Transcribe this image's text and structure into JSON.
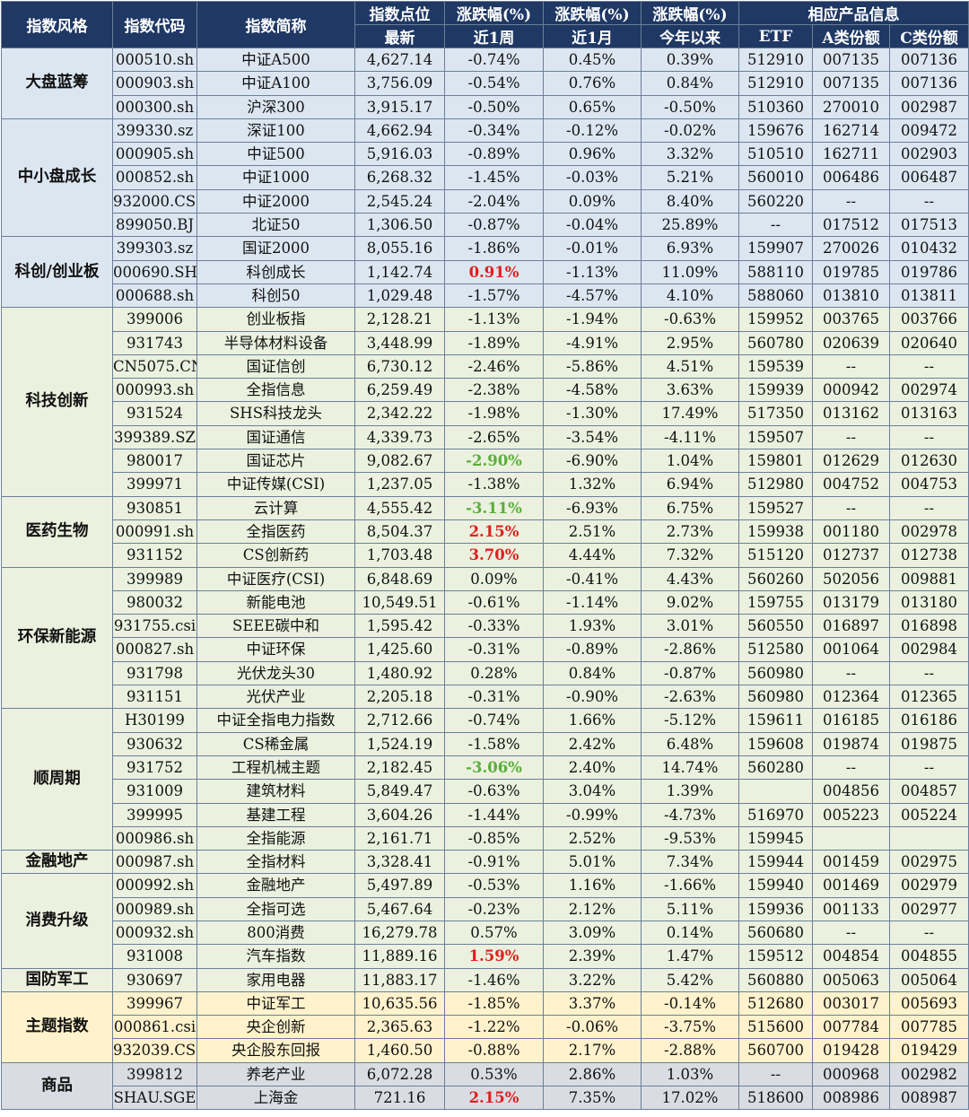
{
  "headers": {
    "style": "指数风格",
    "code": "指数代码",
    "name": "指数简称",
    "points_top": "指数点位",
    "points_sub": "最新",
    "chg_w_top": "涨跌幅(%)",
    "chg_w_sub": "近1周",
    "chg_m_top": "涨跌幅(%)",
    "chg_m_sub": "近1月",
    "chg_y_top": "涨跌幅(%)",
    "chg_y_sub": "今年以来",
    "product_top": "相应产品信息",
    "etf": "ETF",
    "a_share": "A类份额",
    "c_share": "C类份额"
  },
  "highlight_colors": {
    "up": "#e01e1e",
    "down": "#5aae3c"
  },
  "groups": [
    {
      "category": "大盘蓝筹",
      "color": "blue",
      "rows": [
        {
          "code": "000510.sh",
          "name": "中证A500",
          "points": "4,627.14",
          "week": "-0.74%",
          "month": "0.45%",
          "ytd": "0.39%",
          "etf": "512910",
          "a": "007135",
          "c": "007136"
        },
        {
          "code": "000903.sh",
          "name": "中证A100",
          "points": "3,756.09",
          "week": "-0.54%",
          "month": "0.76%",
          "ytd": "0.84%",
          "etf": "512910",
          "a": "007135",
          "c": "007136"
        },
        {
          "code": "000300.sh",
          "name": "沪深300",
          "points": "3,915.17",
          "week": "-0.50%",
          "month": "0.65%",
          "ytd": "-0.50%",
          "etf": "510360",
          "a": "270010",
          "c": "002987"
        }
      ]
    },
    {
      "category": "中小盘成长",
      "color": "blue",
      "rows": [
        {
          "code": "399330.sz",
          "name": "深证100",
          "points": "4,662.94",
          "week": "-0.34%",
          "month": "-0.12%",
          "ytd": "-0.02%",
          "etf": "159676",
          "a": "162714",
          "c": "009472"
        },
        {
          "code": "000905.sh",
          "name": "中证500",
          "points": "5,916.03",
          "week": "-0.89%",
          "month": "0.96%",
          "ytd": "3.32%",
          "etf": "510510",
          "a": "162711",
          "c": "002903"
        },
        {
          "code": "000852.sh",
          "name": "中证1000",
          "points": "6,268.32",
          "week": "-1.45%",
          "month": "-0.03%",
          "ytd": "5.21%",
          "etf": "560010",
          "a": "006486",
          "c": "006487"
        },
        {
          "code": "932000.CSI",
          "name": "中证2000",
          "points": "2,545.24",
          "week": "-2.04%",
          "month": "0.09%",
          "ytd": "8.40%",
          "etf": "560220",
          "a": "--",
          "c": "--"
        },
        {
          "code": "899050.BJ",
          "name": "北证50",
          "points": "1,306.50",
          "week": "-0.87%",
          "month": "-0.04%",
          "ytd": "25.89%",
          "etf": "--",
          "a": "017512",
          "c": "017513"
        }
      ]
    },
    {
      "category": "科创/创业板",
      "color": "blue",
      "rows": [
        {
          "code": "399303.sz",
          "name": "国证2000",
          "points": "8,055.16",
          "week": "-1.86%",
          "month": "-0.01%",
          "ytd": "6.93%",
          "etf": "159907",
          "a": "270026",
          "c": "010432"
        },
        {
          "code": "000690.SH",
          "name": "科创成长",
          "points": "1,142.74",
          "week": "0.91%",
          "week_hl": "up",
          "month": "-1.13%",
          "ytd": "11.09%",
          "etf": "588110",
          "a": "019785",
          "c": "019786"
        },
        {
          "code": "000688.sh",
          "name": "科创50",
          "points": "1,029.48",
          "week": "-1.57%",
          "month": "-4.57%",
          "ytd": "4.10%",
          "etf": "588060",
          "a": "013810",
          "c": "013811"
        }
      ]
    },
    {
      "category": "科技创新",
      "color": "green",
      "rows": [
        {
          "code": "399006",
          "name": "创业板指",
          "points": "2,128.21",
          "week": "-1.13%",
          "month": "-1.94%",
          "ytd": "-0.63%",
          "etf": "159952",
          "a": "003765",
          "c": "003766"
        },
        {
          "code": "931743",
          "name": "半导体材料设备",
          "points": "3,448.99",
          "week": "-1.89%",
          "month": "-4.91%",
          "ytd": "2.95%",
          "etf": "560780",
          "a": "020639",
          "c": "020640"
        },
        {
          "code": "CN5075.CN",
          "name": "国证信创",
          "points": "6,730.12",
          "week": "-2.46%",
          "month": "-5.86%",
          "ytd": "4.51%",
          "etf": "159539",
          "a": "--",
          "c": "--"
        },
        {
          "code": "000993.sh",
          "name": "全指信息",
          "points": "6,259.49",
          "week": "-2.38%",
          "month": "-4.58%",
          "ytd": "3.63%",
          "etf": "159939",
          "a": "000942",
          "c": "002974"
        },
        {
          "code": "931524",
          "name": "SHS科技龙头",
          "points": "2,342.22",
          "week": "-1.98%",
          "month": "-1.30%",
          "ytd": "17.49%",
          "etf": "517350",
          "a": "013162",
          "c": "013163"
        },
        {
          "code": "399389.SZ",
          "name": "国证通信",
          "points": "4,339.73",
          "week": "-2.65%",
          "month": "-3.54%",
          "ytd": "-4.11%",
          "etf": "159507",
          "a": "--",
          "c": "--"
        },
        {
          "code": "980017",
          "name": "国证芯片",
          "points": "9,082.67",
          "week": "-2.90%",
          "week_hl": "down",
          "month": "-6.90%",
          "ytd": "1.04%",
          "etf": "159801",
          "a": "012629",
          "c": "012630"
        },
        {
          "code": "399971",
          "name": "中证传媒(CSI)",
          "points": "1,237.05",
          "week": "-1.38%",
          "month": "1.32%",
          "ytd": "6.94%",
          "etf": "512980",
          "a": "004752",
          "c": "004753"
        }
      ]
    },
    {
      "category": "医药生物",
      "color": "green",
      "rows": [
        {
          "code": "930851",
          "name": "云计算",
          "points": "4,555.42",
          "week": "-3.11%",
          "week_hl": "down",
          "month": "-6.93%",
          "ytd": "6.75%",
          "etf": "159527",
          "a": "--",
          "c": "--"
        },
        {
          "code": "000991.sh",
          "name": "全指医药",
          "points": "8,504.37",
          "week": "2.15%",
          "week_hl": "up",
          "month": "2.51%",
          "ytd": "2.73%",
          "etf": "159938",
          "a": "001180",
          "c": "002978"
        },
        {
          "code": "931152",
          "name": "CS创新药",
          "points": "1,703.48",
          "week": "3.70%",
          "week_hl": "up",
          "month": "4.44%",
          "ytd": "7.32%",
          "etf": "515120",
          "a": "012737",
          "c": "012738"
        }
      ]
    },
    {
      "category": "环保新能源",
      "color": "green",
      "rows": [
        {
          "code": "399989",
          "name": "中证医疗(CSI)",
          "points": "6,848.69",
          "week": "0.09%",
          "month": "-0.41%",
          "ytd": "4.43%",
          "etf": "560260",
          "a": "502056",
          "c": "009881"
        },
        {
          "code": "980032",
          "name": "新能电池",
          "points": "10,549.51",
          "week": "-0.61%",
          "month": "-1.14%",
          "ytd": "9.02%",
          "etf": "159755",
          "a": "013179",
          "c": "013180"
        },
        {
          "code": "931755.csi",
          "name": "SEEE碳中和",
          "points": "1,595.42",
          "week": "-0.33%",
          "month": "1.93%",
          "ytd": "3.01%",
          "etf": "560550",
          "a": "016897",
          "c": "016898"
        },
        {
          "code": "000827.sh",
          "name": "中证环保",
          "points": "1,425.60",
          "week": "-0.31%",
          "month": "-0.89%",
          "ytd": "-2.86%",
          "etf": "512580",
          "a": "001064",
          "c": "002984"
        },
        {
          "code": "931798",
          "name": "光伏龙头30",
          "points": "1,480.92",
          "week": "0.28%",
          "month": "0.84%",
          "ytd": "-0.87%",
          "etf": "560980",
          "a": "--",
          "c": "--"
        },
        {
          "code": "931151",
          "name": "光伏产业",
          "points": "2,205.18",
          "week": "-0.31%",
          "month": "-0.90%",
          "ytd": "-2.63%",
          "etf": "560980",
          "a": "012364",
          "c": "012365"
        }
      ]
    },
    {
      "category": "顺周期",
      "color": "green",
      "rows": [
        {
          "code": "H30199",
          "name": "中证全指电力指数",
          "points": "2,712.66",
          "week": "-0.74%",
          "month": "1.66%",
          "ytd": "-5.12%",
          "etf": "159611",
          "a": "016185",
          "c": "016186"
        },
        {
          "code": "930632",
          "name": "CS稀金属",
          "points": "1,524.19",
          "week": "-1.58%",
          "month": "2.42%",
          "ytd": "6.48%",
          "etf": "159608",
          "a": "019874",
          "c": "019875"
        },
        {
          "code": "931752",
          "name": "工程机械主题",
          "points": "2,182.45",
          "week": "-3.06%",
          "week_hl": "down",
          "month": "2.40%",
          "ytd": "14.74%",
          "etf": "560280",
          "a": "--",
          "c": "--"
        },
        {
          "code": "931009",
          "name": "建筑材料",
          "points": "5,849.47",
          "week": "-0.63%",
          "month": "3.04%",
          "ytd": "1.39%",
          "etf": "",
          "a": "004856",
          "c": "004857"
        },
        {
          "code": "399995",
          "name": "基建工程",
          "points": "3,604.26",
          "week": "-1.44%",
          "month": "-0.99%",
          "ytd": "-4.73%",
          "etf": "516970",
          "a": "005223",
          "c": "005224"
        },
        {
          "code": "000986.sh",
          "name": "全指能源",
          "points": "2,161.71",
          "week": "-0.85%",
          "month": "2.52%",
          "ytd": "-9.53%",
          "etf": "159945",
          "a": "",
          "c": ""
        }
      ]
    },
    {
      "category": "金融地产",
      "color": "green",
      "rows": [
        {
          "code": "000987.sh",
          "name": "全指材料",
          "points": "3,328.41",
          "week": "-0.91%",
          "month": "5.01%",
          "ytd": "7.34%",
          "etf": "159944",
          "a": "001459",
          "c": "002975"
        }
      ]
    },
    {
      "category": "消费升级",
      "color": "green",
      "rows": [
        {
          "code": "000992.sh",
          "name": "金融地产",
          "points": "5,497.89",
          "week": "-0.53%",
          "month": "1.16%",
          "ytd": "-1.66%",
          "etf": "159940",
          "a": "001469",
          "c": "002979"
        },
        {
          "code": "000989.sh",
          "name": "全指可选",
          "points": "5,467.64",
          "week": "-0.23%",
          "month": "2.12%",
          "ytd": "5.11%",
          "etf": "159936",
          "a": "001133",
          "c": "002977"
        },
        {
          "code": "000932.sh",
          "name": "800消费",
          "points": "16,279.78",
          "week": "0.57%",
          "month": "3.09%",
          "ytd": "0.14%",
          "etf": "560680",
          "a": "--",
          "c": "--"
        },
        {
          "code": "931008",
          "name": "汽车指数",
          "points": "11,889.16",
          "week": "1.59%",
          "week_hl": "up",
          "month": "2.39%",
          "ytd": "1.47%",
          "etf": "159512",
          "a": "004854",
          "c": "004855"
        }
      ]
    },
    {
      "category": "国防军工",
      "color": "green",
      "rows": [
        {
          "code": "930697",
          "name": "家用电器",
          "points": "11,883.17",
          "week": "-1.46%",
          "month": "3.22%",
          "ytd": "5.42%",
          "etf": "560880",
          "a": "005063",
          "c": "005064"
        }
      ]
    },
    {
      "category": "主题指数",
      "color": "yellow",
      "rows": [
        {
          "code": "399967",
          "name": "中证军工",
          "points": "10,635.56",
          "week": "-1.85%",
          "month": "3.37%",
          "ytd": "-0.14%",
          "etf": "512680",
          "a": "003017",
          "c": "005693"
        },
        {
          "code": "000861.csi",
          "name": "央企创新",
          "points": "2,365.63",
          "week": "-1.22%",
          "month": "-0.06%",
          "ytd": "-3.75%",
          "etf": "515600",
          "a": "007784",
          "c": "007785"
        },
        {
          "code": "932039.CSI",
          "name": "央企股东回报",
          "points": "1,460.50",
          "week": "-0.88%",
          "month": "2.17%",
          "ytd": "-2.88%",
          "etf": "560700",
          "a": "019428",
          "c": "019429"
        }
      ]
    },
    {
      "category": "商品",
      "color": "gray",
      "rows": [
        {
          "code": "399812",
          "name": "养老产业",
          "points": "6,072.28",
          "week": "0.53%",
          "month": "2.86%",
          "ytd": "1.03%",
          "etf": "--",
          "a": "000968",
          "c": "002982"
        },
        {
          "code": "SHAU.SGE",
          "name": "上海金",
          "points": "721.16",
          "week": "2.15%",
          "week_hl": "up",
          "month": "7.35%",
          "ytd": "17.02%",
          "etf": "518600",
          "a": "008986",
          "c": "008987"
        }
      ]
    }
  ]
}
